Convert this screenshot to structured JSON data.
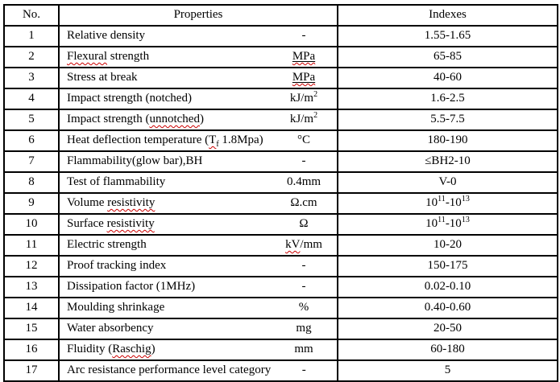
{
  "table": {
    "headers": [
      "No.",
      "Properties",
      "Indexes"
    ],
    "rows": [
      {
        "no": "1",
        "property": "Relative density",
        "unit": "-",
        "index": "1.55-1.65"
      },
      {
        "no": "2",
        "property": "~{Flexural} strength",
        "unit": "={MPa}",
        "index": "65-85"
      },
      {
        "no": "3",
        "property": "Stress at break",
        "unit": "={MPa}",
        "index": "40-60"
      },
      {
        "no": "4",
        "property": "Impact strength (notched)",
        "unit": "kJ/m^{2}",
        "index": "1.6-2.5"
      },
      {
        "no": "5",
        "property": "Impact strength (~{unnotched})",
        "unit": "kJ/m^{2}",
        "index": "5.5-7.5"
      },
      {
        "no": "6",
        "property": "Heat deflection temperature (~{T_{f}} 1.8Mpa)",
        "unit": "°C",
        "index": "180-190"
      },
      {
        "no": "7",
        "property": "Flammability(glow bar),BH",
        "unit": "-",
        "index": "≤BH2-10"
      },
      {
        "no": "8",
        "property": "Test of flammability",
        "unit": "0.4mm",
        "index": "V-0"
      },
      {
        "no": "9",
        "property": "Volume ~{resistivity}",
        "unit": "Ω.cm",
        "index": "10^{11}-10^{13}"
      },
      {
        "no": "10",
        "property": "Surface ~{resistivity}",
        "unit": "Ω",
        "index": "10^{11}-10^{13}"
      },
      {
        "no": "11",
        "property": "Electric strength",
        "unit": "~{kV}/mm",
        "index": "10-20"
      },
      {
        "no": "12",
        "property": "Proof tracking index",
        "unit": "-",
        "index": "150-175"
      },
      {
        "no": "13",
        "property": "Dissipation factor (1MHz)",
        "unit": "-",
        "index": "0.02-0.10"
      },
      {
        "no": "14",
        "property": "Moulding shrinkage",
        "unit": "%",
        "index": "0.40-0.60"
      },
      {
        "no": "15",
        "property": "Water absorbency",
        "unit": "mg",
        "index": "20-50"
      },
      {
        "no": "16",
        "property": "Fluidity (~{Raschig})",
        "unit": "mm",
        "index": "60-180"
      },
      {
        "no": "17",
        "property": "Arc resistance performance level category",
        "unit": "-",
        "index": "5"
      }
    ]
  },
  "colors": {
    "border": "#000000",
    "text": "#000000",
    "spellcheck_underline": "#cc0000",
    "background": "#ffffff"
  }
}
